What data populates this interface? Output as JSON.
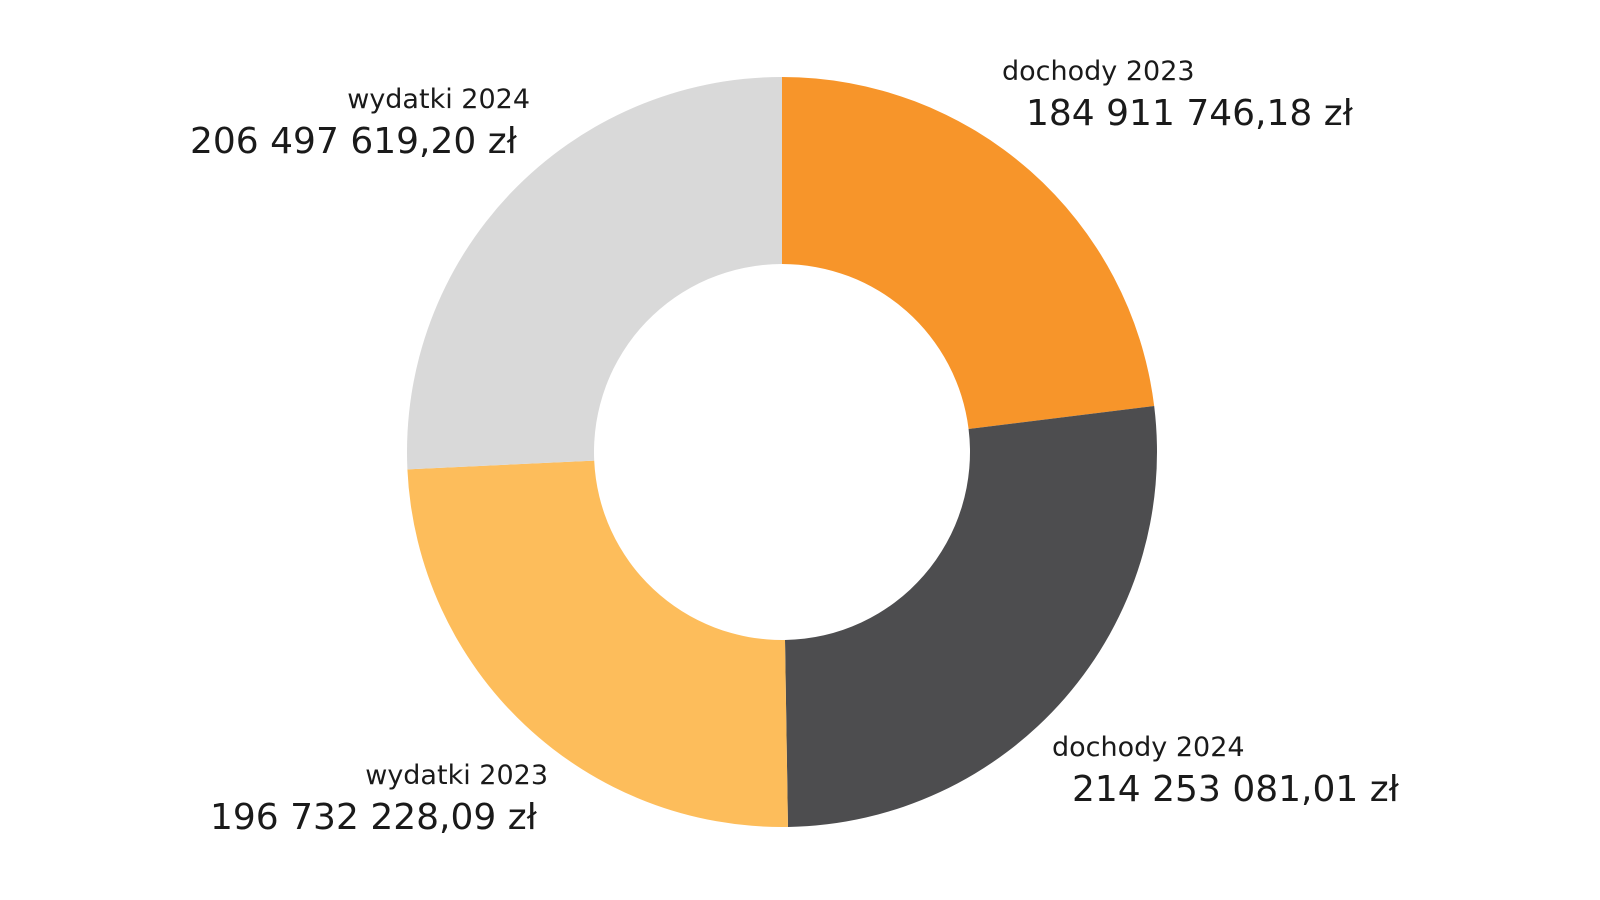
{
  "chart_data": {
    "type": "pie",
    "donut": true,
    "currency_suffix": "zł",
    "slices": [
      {
        "label": "dochody 2023",
        "value_text": "184 911 746,18 zł",
        "value": 184911746.18,
        "color": "#f7952a"
      },
      {
        "label": "dochody 2024",
        "value_text": "214 253 081,01 zł",
        "value": 214253081.01,
        "color": "#4d4d4f"
      },
      {
        "label": "wydatki 2023",
        "value_text": "196 732 228,09 zł",
        "value": 196732228.09,
        "color": "#fdbd5b"
      },
      {
        "label": "wydatki 2024",
        "value_text": "206 497 619,20 zł",
        "value": 206497619.2,
        "color": "#d9d9d9"
      }
    ],
    "legend": "none"
  }
}
